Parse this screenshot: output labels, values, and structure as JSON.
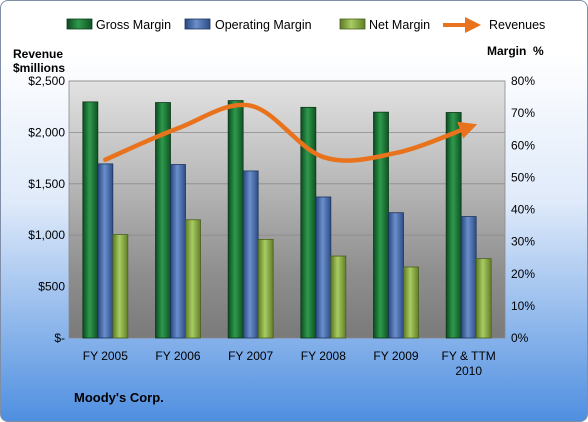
{
  "chart_data": {
    "type": "bar",
    "categories": [
      [
        "FY 2005"
      ],
      [
        "FY 2006"
      ],
      [
        "FY 2007"
      ],
      [
        "FY 2008"
      ],
      [
        "FY 2009"
      ],
      [
        "FY & TTM",
        "2010"
      ]
    ],
    "series": [
      {
        "name": "Gross Margin",
        "kind": "bar",
        "axis": "right",
        "values": [
          73.5,
          73.3,
          73.9,
          71.8,
          70.3,
          70.2
        ],
        "color": "#1e7a3a"
      },
      {
        "name": "Operating Margin",
        "kind": "bar",
        "axis": "right",
        "values": [
          54.2,
          54.0,
          52.0,
          43.9,
          39.0,
          37.8
        ],
        "color": "#4a6fb0"
      },
      {
        "name": "Net Margin",
        "kind": "bar",
        "axis": "right",
        "values": [
          32.2,
          36.8,
          30.7,
          25.5,
          22.1,
          24.7
        ],
        "color": "#8db04a"
      },
      {
        "name": "Revenues",
        "kind": "line",
        "axis": "left",
        "values": [
          1735,
          2040,
          2260,
          1760,
          1800,
          2050
        ],
        "color": "#e8731c"
      }
    ],
    "ylabel_left": [
      "Revenue",
      "$millions"
    ],
    "ylabel_right": "Margin  %",
    "left_ticks": [
      "$-",
      "$500",
      "$1,000",
      "$1,500",
      "$2,000",
      "$2,500"
    ],
    "right_ticks": [
      "0%",
      "10%",
      "20%",
      "30%",
      "40%",
      "50%",
      "60%",
      "70%",
      "80%"
    ],
    "ylim_left": [
      0,
      2500
    ],
    "ylim_right": [
      0,
      80
    ],
    "grid": true,
    "legend": "top",
    "footer": "Moody's Corp."
  }
}
